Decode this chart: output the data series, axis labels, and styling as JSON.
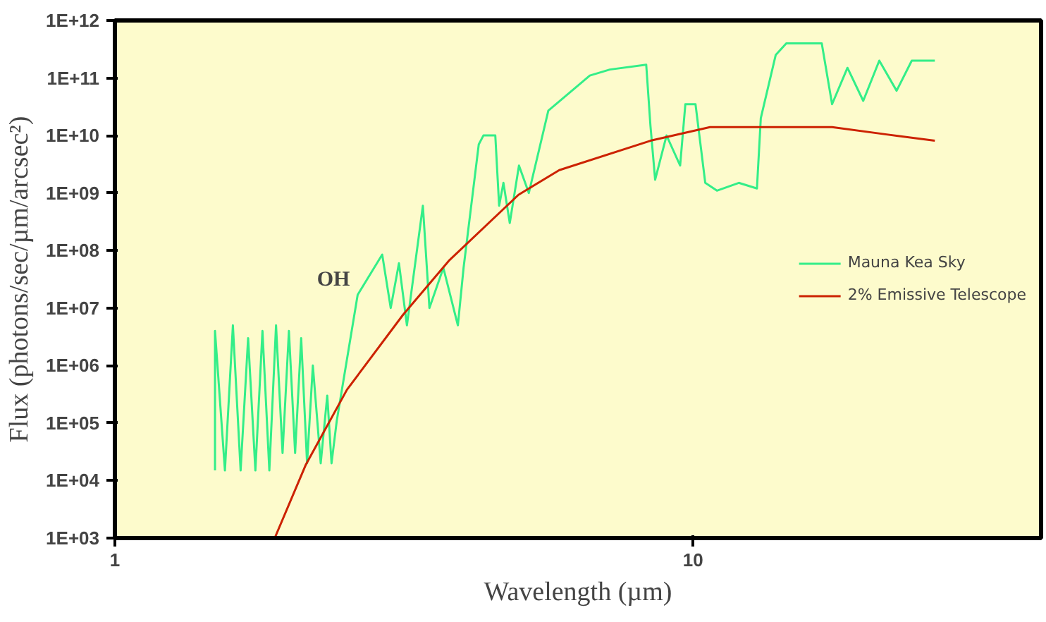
{
  "chart_data": {
    "type": "line",
    "xlabel": "Wavelength (µm)",
    "ylabel": "Flux (photons/sec/µm/arcsec²)",
    "log": "xy",
    "xlim": [
      1,
      40
    ],
    "xticks": [
      1,
      10
    ],
    "ylim": [
      1000,
      1000000000000
    ],
    "yticks": [
      {
        "value": 1000,
        "label": "1E+03"
      },
      {
        "value": 10000,
        "label": "1E+04"
      },
      {
        "value": 100000,
        "label": "1E+05"
      },
      {
        "value": 1000000,
        "label": "1E+06"
      },
      {
        "value": 10000000,
        "label": "1E+07"
      },
      {
        "value": 100000000,
        "label": "1E+08"
      },
      {
        "value": 1000000000,
        "label": "1E+09"
      },
      {
        "value": 10000000000,
        "label": "1E+10"
      },
      {
        "value": 100000000000,
        "label": "1E+11"
      },
      {
        "value": 1000000000000,
        "label": "1E+12"
      }
    ],
    "grid": false,
    "legend": "right",
    "annotations": [
      "OH"
    ],
    "series": [
      {
        "name": "Mauna Kea Sky",
        "color": "#33ee88",
        "x": [
          1.49,
          1.49,
          1.55,
          1.6,
          1.65,
          1.7,
          1.75,
          1.8,
          1.85,
          1.9,
          1.95,
          2.0,
          2.05,
          2.1,
          2.15,
          2.2,
          2.27,
          2.33,
          2.37,
          2.42,
          2.63,
          2.9,
          3.0,
          3.1,
          3.2,
          3.41,
          3.5,
          3.7,
          3.92,
          4.01,
          4.26,
          4.34,
          4.55,
          4.62,
          4.7,
          4.82,
          5.0,
          5.2,
          5.62,
          6.63,
          7.18,
          8.3,
          8.44,
          8.6,
          9.0,
          9.5,
          9.7,
          10.1,
          10.5,
          11.0,
          12.0,
          12.9,
          13.1,
          13.9,
          14.5,
          16.7,
          17.4,
          18.5,
          19.7,
          21,
          22.5,
          23.9,
          26.2
        ],
        "values": [
          15000,
          4000000,
          15000,
          5000000,
          15000,
          3000000,
          15000,
          4000000,
          15000,
          5000000,
          30000,
          4000000,
          30000,
          3000000,
          20000,
          1000000,
          20000,
          300000,
          20000,
          110000,
          17000000,
          85000000,
          10000000,
          60000000,
          5000000,
          600000000,
          10000000,
          50000000,
          5000000,
          50000000,
          7000000000,
          10000000000,
          10000000000,
          600000000,
          1500000000,
          300000000,
          3000000000,
          1000000000,
          27000000000,
          110000000000,
          140000000000,
          170000000000,
          15000000000,
          1700000000,
          10000000000,
          3000000000,
          35000000000,
          35000000000,
          1500000000,
          1100000000,
          1500000000,
          1200000000,
          20000000000,
          250000000000,
          400000000000,
          400000000000,
          35000000000,
          150000000000,
          40000000000,
          200000000000,
          60000000000,
          200000000000,
          200000000000
        ]
      },
      {
        "name": "2% Emissive Telescope",
        "color": "#cc2200",
        "x": [
          1.89,
          2.14,
          2.52,
          3.15,
          3.78,
          4.99,
          5.87,
          8.44,
          10.7,
          13.5,
          17.4,
          21.5,
          26.2
        ],
        "values": [
          1000,
          19000,
          380000,
          7600000,
          66000000,
          930000000,
          2500000000,
          8100000000,
          14000000000,
          14000000000,
          14000000000,
          10500000000,
          8100000000
        ]
      }
    ]
  }
}
